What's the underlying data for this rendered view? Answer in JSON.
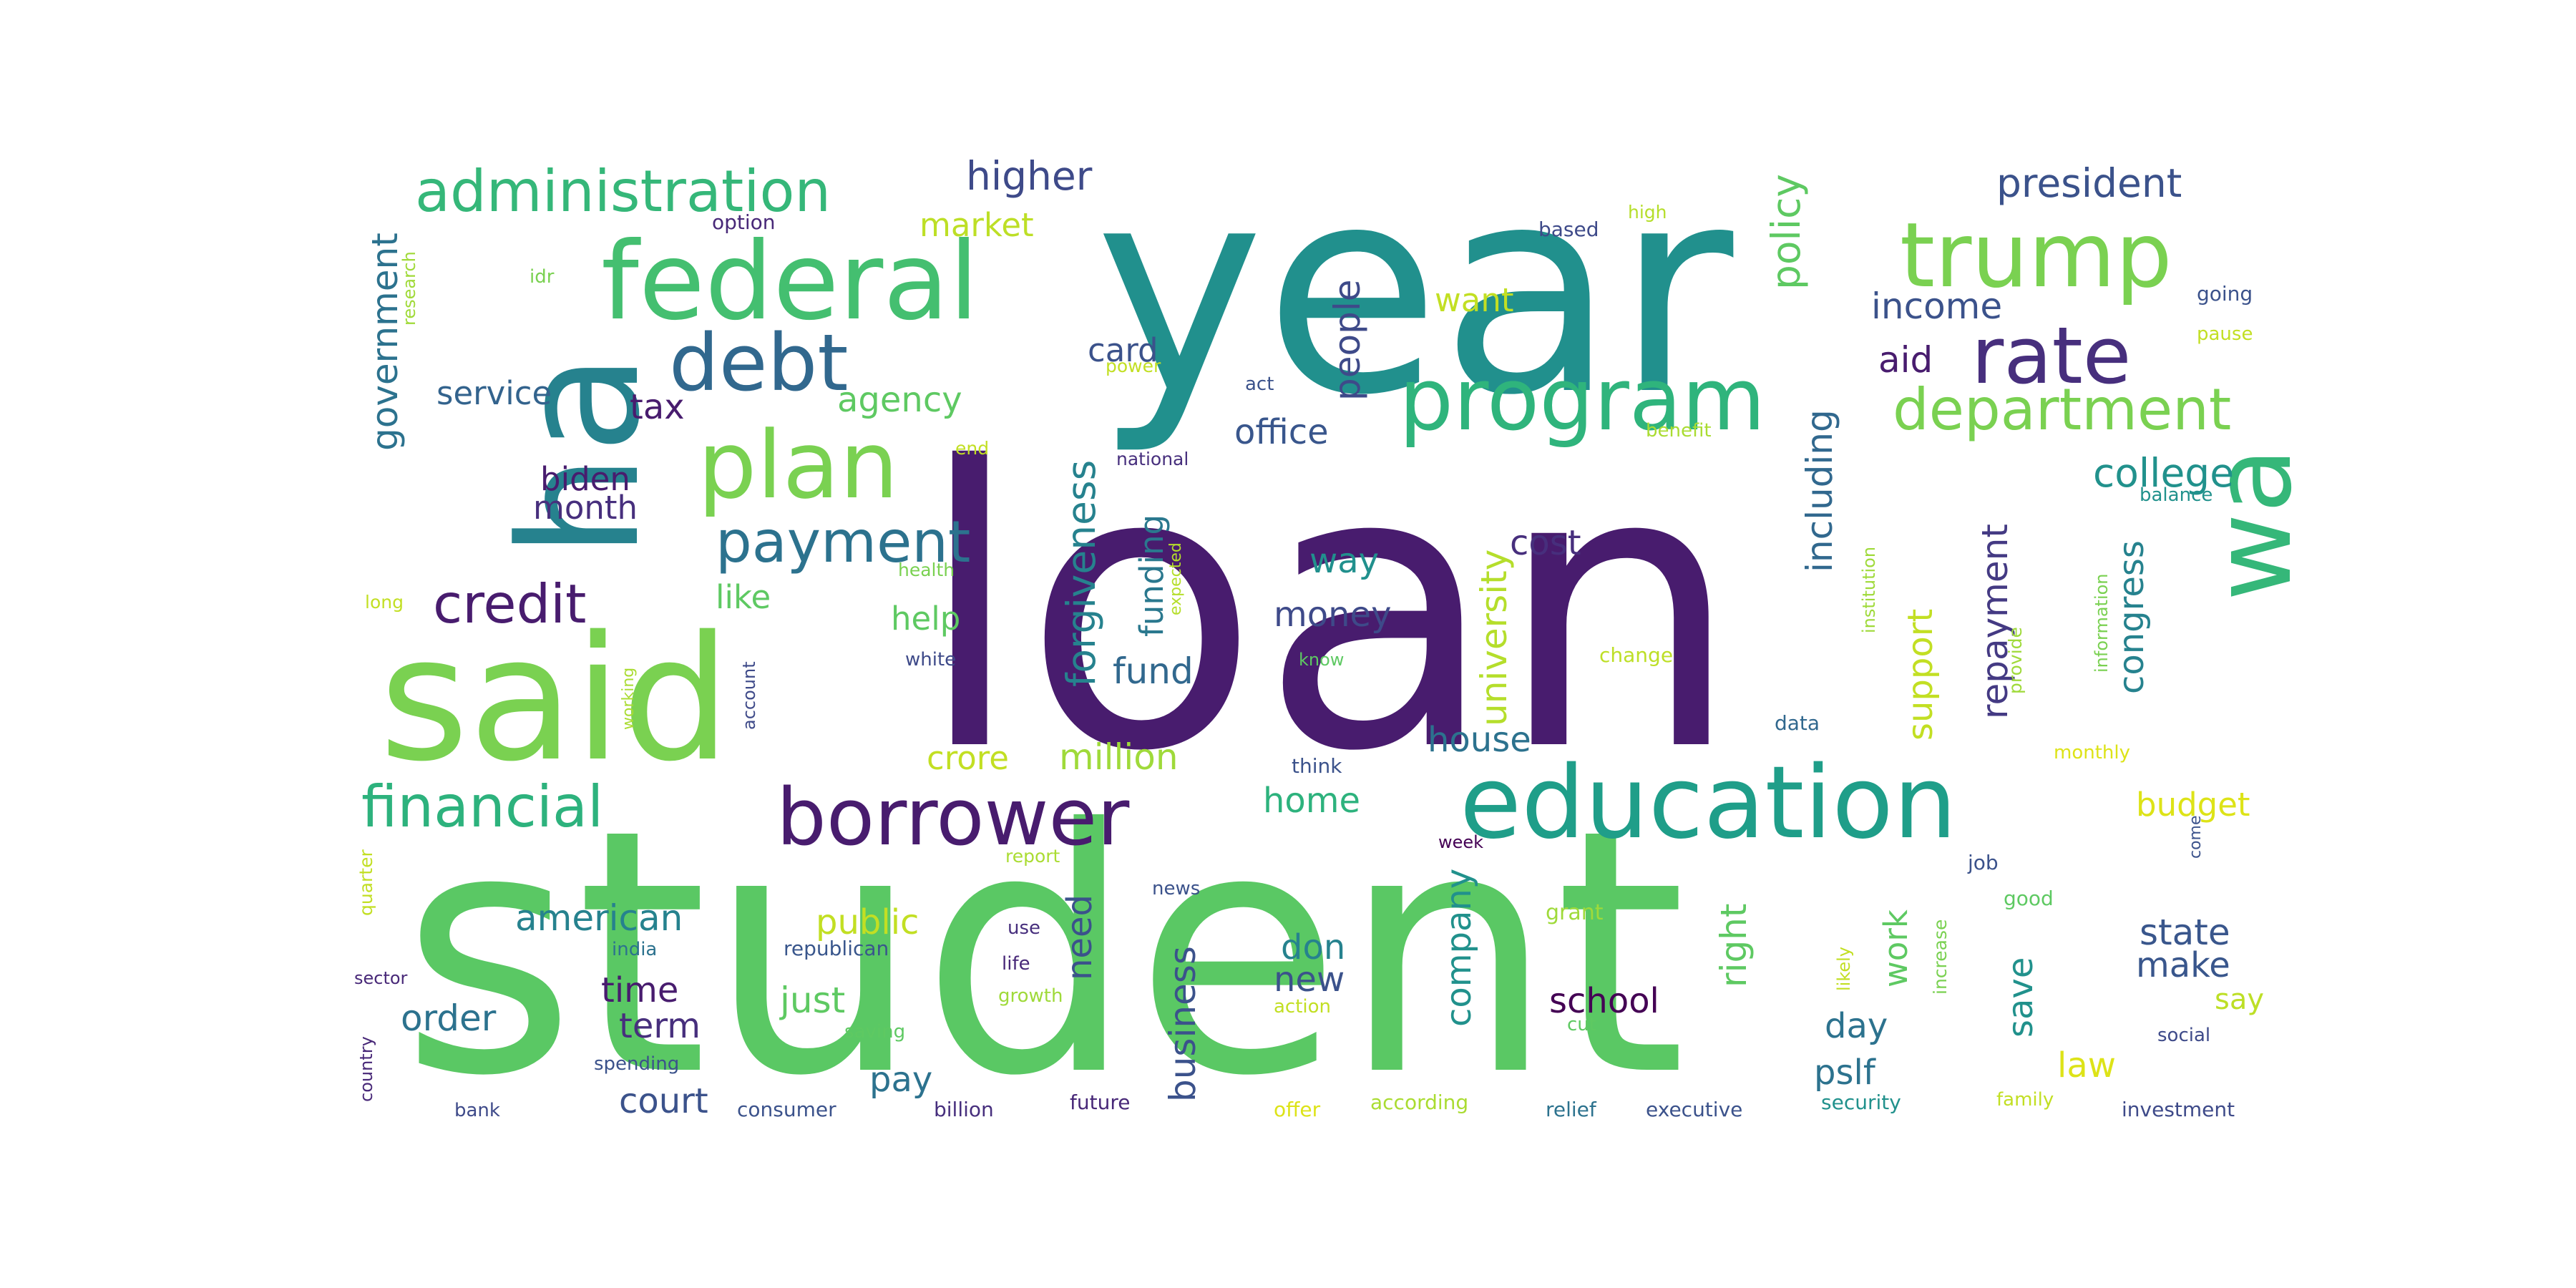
{
  "wordcloud": {
    "words": [
      {
        "text": "loan",
        "color": "#481c6e"
      },
      {
        "text": "student",
        "color": "#5ac864"
      },
      {
        "text": "year",
        "color": "#21908d"
      },
      {
        "text": "ha",
        "color": "#26828e"
      },
      {
        "text": "said",
        "color": "#7ad151"
      },
      {
        "text": "wa",
        "color": "#35b779"
      },
      {
        "text": "federal",
        "color": "#44bf70"
      },
      {
        "text": "trump",
        "color": "#7ad151"
      },
      {
        "text": "program",
        "color": "#2fb47c"
      },
      {
        "text": "rate",
        "color": "#472f7d"
      },
      {
        "text": "debt",
        "color": "#31688e"
      },
      {
        "text": "plan",
        "color": "#7ad151"
      },
      {
        "text": "education",
        "color": "#1f9e89"
      },
      {
        "text": "borrower",
        "color": "#481c6e"
      },
      {
        "text": "administration",
        "color": "#35b779"
      },
      {
        "text": "department",
        "color": "#7ad151"
      },
      {
        "text": "payment",
        "color": "#2c728e"
      },
      {
        "text": "credit",
        "color": "#481c6e"
      },
      {
        "text": "financial",
        "color": "#2db27d"
      },
      {
        "text": "president",
        "color": "#3b528b"
      },
      {
        "text": "higher",
        "color": "#3e4a89"
      },
      {
        "text": "income",
        "color": "#3b528b"
      },
      {
        "text": "college",
        "color": "#21918c"
      },
      {
        "text": "market",
        "color": "#bddf26"
      },
      {
        "text": "card",
        "color": "#3b528b"
      },
      {
        "text": "want",
        "color": "#c2df23"
      },
      {
        "text": "people",
        "color": "#3e4a89"
      },
      {
        "text": "policy",
        "color": "#5ec962"
      },
      {
        "text": "aid",
        "color": "#481c6e"
      },
      {
        "text": "government",
        "color": "#2c728e"
      },
      {
        "text": "service",
        "color": "#33638d"
      },
      {
        "text": "tax",
        "color": "#481c6e"
      },
      {
        "text": "agency",
        "color": "#5ec962"
      },
      {
        "text": "biden",
        "color": "#481c6e"
      },
      {
        "text": "month",
        "color": "#472f7d"
      },
      {
        "text": "forgiveness",
        "color": "#26828e"
      },
      {
        "text": "funding",
        "color": "#2a788e"
      },
      {
        "text": "office",
        "color": "#39568c"
      },
      {
        "text": "university",
        "color": "#b5de2b"
      },
      {
        "text": "including",
        "color": "#31688e"
      },
      {
        "text": "cost",
        "color": "#472f7d"
      },
      {
        "text": "way",
        "color": "#21908d"
      },
      {
        "text": "money",
        "color": "#3e4a89"
      },
      {
        "text": "like",
        "color": "#5ec962"
      },
      {
        "text": "help",
        "color": "#5ec962"
      },
      {
        "text": "fund",
        "color": "#31688e"
      },
      {
        "text": "repayment",
        "color": "#443a83"
      },
      {
        "text": "support",
        "color": "#c2df23"
      },
      {
        "text": "congress",
        "color": "#26828e"
      },
      {
        "text": "house",
        "color": "#2c728e"
      },
      {
        "text": "crore",
        "color": "#c2df23"
      },
      {
        "text": "million",
        "color": "#9fda3a"
      },
      {
        "text": "home",
        "color": "#2db27d"
      },
      {
        "text": "budget",
        "color": "#dde318"
      },
      {
        "text": "american",
        "color": "#26828e"
      },
      {
        "text": "public",
        "color": "#c2df23"
      },
      {
        "text": "need",
        "color": "#3b528b"
      },
      {
        "text": "business",
        "color": "#3b528b"
      },
      {
        "text": "don",
        "color": "#26828e"
      },
      {
        "text": "company",
        "color": "#21918c"
      },
      {
        "text": "right",
        "color": "#5ec962"
      },
      {
        "text": "work",
        "color": "#5ec962"
      },
      {
        "text": "state",
        "color": "#39568c"
      },
      {
        "text": "make",
        "color": "#39568c"
      },
      {
        "text": "say",
        "color": "#bddf26"
      },
      {
        "text": "save",
        "color": "#21918c"
      },
      {
        "text": "time",
        "color": "#481c6e"
      },
      {
        "text": "just",
        "color": "#5ec962"
      },
      {
        "text": "new",
        "color": "#3b528b"
      },
      {
        "text": "school",
        "color": "#440154"
      },
      {
        "text": "day",
        "color": "#2c728e"
      },
      {
        "text": "order",
        "color": "#2c728e"
      },
      {
        "text": "term",
        "color": "#472f7d"
      },
      {
        "text": "pay",
        "color": "#2c728e"
      },
      {
        "text": "court",
        "color": "#3b528b"
      },
      {
        "text": "pslf",
        "color": "#2c728e"
      },
      {
        "text": "law",
        "color": "#dde318"
      },
      {
        "text": "option",
        "color": "#482878"
      },
      {
        "text": "based",
        "color": "#3e4a89"
      },
      {
        "text": "high",
        "color": "#b5de2b"
      },
      {
        "text": "going",
        "color": "#3b528b"
      },
      {
        "text": "idr",
        "color": "#7ad151"
      },
      {
        "text": "pause",
        "color": "#c2df23"
      },
      {
        "text": "research",
        "color": "#a0da39"
      },
      {
        "text": "power",
        "color": "#c2df23"
      },
      {
        "text": "act",
        "color": "#3b528b"
      },
      {
        "text": "benefit",
        "color": "#aadc32"
      },
      {
        "text": "end",
        "color": "#c2df23"
      },
      {
        "text": "national",
        "color": "#472f7d"
      },
      {
        "text": "balance",
        "color": "#21918c"
      },
      {
        "text": "health",
        "color": "#7ad151"
      },
      {
        "text": "expected",
        "color": "#b5de2b"
      },
      {
        "text": "information",
        "color": "#7ad151"
      },
      {
        "text": "long",
        "color": "#c2df23"
      },
      {
        "text": "institution",
        "color": "#9fda3a"
      },
      {
        "text": "white",
        "color": "#3e4a89"
      },
      {
        "text": "know",
        "color": "#5ec962"
      },
      {
        "text": "change",
        "color": "#bddf26"
      },
      {
        "text": "provide",
        "color": "#9fda3a"
      },
      {
        "text": "account",
        "color": "#3e4a89"
      },
      {
        "text": "working",
        "color": "#aadc32"
      },
      {
        "text": "think",
        "color": "#3b528b"
      },
      {
        "text": "data",
        "color": "#31688e"
      },
      {
        "text": "monthly",
        "color": "#dde318"
      },
      {
        "text": "report",
        "color": "#aadc32"
      },
      {
        "text": "week",
        "color": "#440154"
      },
      {
        "text": "come",
        "color": "#3b528b"
      },
      {
        "text": "quarter",
        "color": "#c2df23"
      },
      {
        "text": "news",
        "color": "#3b528b"
      },
      {
        "text": "grant",
        "color": "#9fda3a"
      },
      {
        "text": "job",
        "color": "#3b528b"
      },
      {
        "text": "good",
        "color": "#5ec962"
      },
      {
        "text": "likely",
        "color": "#c2df23"
      },
      {
        "text": "increase",
        "color": "#7ad151"
      },
      {
        "text": "use",
        "color": "#472f7d"
      },
      {
        "text": "india",
        "color": "#2c728e"
      },
      {
        "text": "republican",
        "color": "#39568c"
      },
      {
        "text": "life",
        "color": "#482878"
      },
      {
        "text": "sector",
        "color": "#482878"
      },
      {
        "text": "growth",
        "color": "#9fda3a"
      },
      {
        "text": "action",
        "color": "#c2df23"
      },
      {
        "text": "cut",
        "color": "#5ec962"
      },
      {
        "text": "social",
        "color": "#3e4a89"
      },
      {
        "text": "country",
        "color": "#482878"
      },
      {
        "text": "saving",
        "color": "#5ec962"
      },
      {
        "text": "spending",
        "color": "#3b528b"
      },
      {
        "text": "bank",
        "color": "#3e4a89"
      },
      {
        "text": "consumer",
        "color": "#3b528b"
      },
      {
        "text": "billion",
        "color": "#472f7d"
      },
      {
        "text": "future",
        "color": "#482878"
      },
      {
        "text": "offer",
        "color": "#dde318"
      },
      {
        "text": "according",
        "color": "#aadc32"
      },
      {
        "text": "relief",
        "color": "#2c728e"
      },
      {
        "text": "executive",
        "color": "#3b528b"
      },
      {
        "text": "security",
        "color": "#21918c"
      },
      {
        "text": "family",
        "color": "#c2df23"
      },
      {
        "text": "investment",
        "color": "#3e4a89"
      }
    ]
  }
}
